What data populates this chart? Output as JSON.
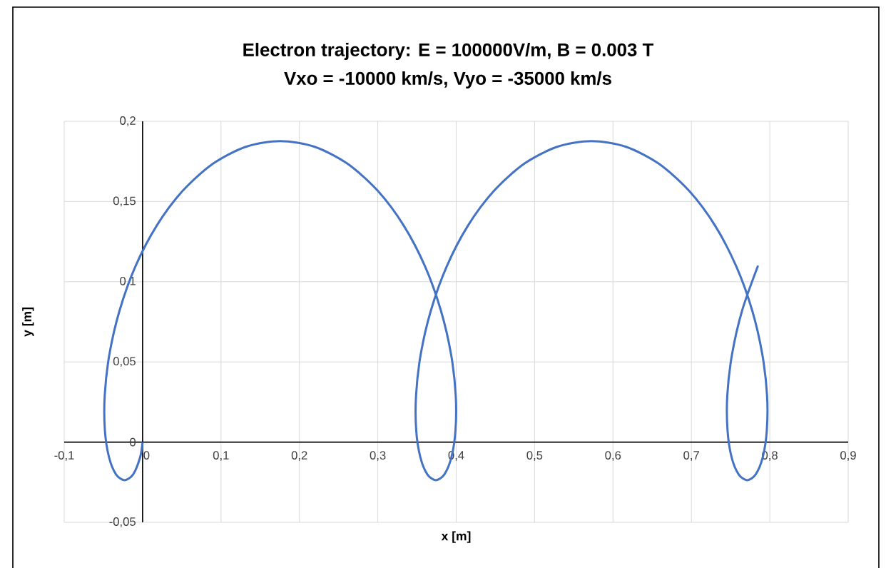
{
  "chart_data": {
    "type": "line",
    "title": "Electron trajectory: E = 100000V/m, B = 0.003 T",
    "subtitle": "Vxo = -10000 km/s, Vyo = -35000 km/s",
    "xlabel": "x [m]",
    "ylabel": "y [m]",
    "xlim": [
      -0.1,
      0.9
    ],
    "ylim": [
      -0.05,
      0.2
    ],
    "xticks": [
      {
        "value": -0.1,
        "label": "-0,1"
      },
      0,
      {
        "value": 0.1,
        "label": "0,1"
      },
      {
        "value": 0.2,
        "label": "0,2"
      },
      {
        "value": 0.3,
        "label": "0,3"
      },
      {
        "value": 0.4,
        "label": "0,4"
      },
      {
        "value": 0.5,
        "label": "0,5"
      },
      {
        "value": 0.6,
        "label": "0,6"
      },
      {
        "value": 0.7,
        "label": "0,7"
      },
      {
        "value": 0.8,
        "label": "0,8"
      },
      {
        "value": 0.9,
        "label": "0,9"
      }
    ],
    "yticks": [
      {
        "value": -0.05,
        "label": "-0,05"
      },
      0,
      {
        "value": 0.05,
        "label": "0,05"
      },
      {
        "value": 0.1,
        "label": "0,1"
      },
      {
        "value": 0.15,
        "label": "0,15"
      },
      {
        "value": 0.2,
        "label": "0,2"
      }
    ],
    "grid": true,
    "marker": "none",
    "line_style": "solid",
    "series": [
      {
        "color": "#4472c4",
        "x": [
          0,
          -0.0032,
          -0.0121,
          -0.023,
          -0.0339,
          -0.0428,
          -0.0481,
          -0.0483,
          -0.0424,
          -0.0294,
          -0.0093,
          0.0179,
          0.0512,
          0.0896,
          0.1316,
          0.1755,
          0.2195,
          0.2615,
          0.2999,
          0.3332,
          0.3604,
          0.3805,
          0.3935,
          0.3994,
          0.3991,
          0.3939,
          0.3849,
          0.3741,
          0.3632,
          0.3543,
          0.349,
          0.3488,
          0.3547,
          0.3677,
          0.3878,
          0.4149,
          0.4483,
          0.4866,
          0.5287,
          0.5726,
          0.6166,
          0.6586,
          0.697,
          0.7303,
          0.7574,
          0.7776,
          0.7905,
          0.7965,
          0.7962,
          0.791,
          0.782,
          0.7712,
          0.7603,
          0.7513,
          0.7461,
          0.7458,
          0.7518,
          0.7647,
          0.785
        ],
        "values": [
          0,
          -0.0095,
          -0.0201,
          -0.0237,
          -0.0201,
          -0.0095,
          0.0073,
          0.0291,
          0.0546,
          0.082,
          0.1094,
          0.1349,
          0.1567,
          0.1735,
          0.1841,
          0.1877,
          0.1841,
          0.1735,
          0.1567,
          0.1349,
          0.1094,
          0.082,
          0.0546,
          0.0291,
          0.0073,
          -0.0095,
          -0.0201,
          -0.0237,
          -0.0201,
          -0.0095,
          0.0073,
          0.0291,
          0.0546,
          0.082,
          0.1094,
          0.1349,
          0.1567,
          0.1735,
          0.1841,
          0.1877,
          0.1841,
          0.1735,
          0.1567,
          0.1349,
          0.1094,
          0.082,
          0.0546,
          0.0291,
          0.0073,
          -0.0095,
          -0.0201,
          -0.0237,
          -0.0201,
          -0.0095,
          0.0073,
          0.0291,
          0.0546,
          0.082,
          0.11
        ]
      }
    ]
  }
}
